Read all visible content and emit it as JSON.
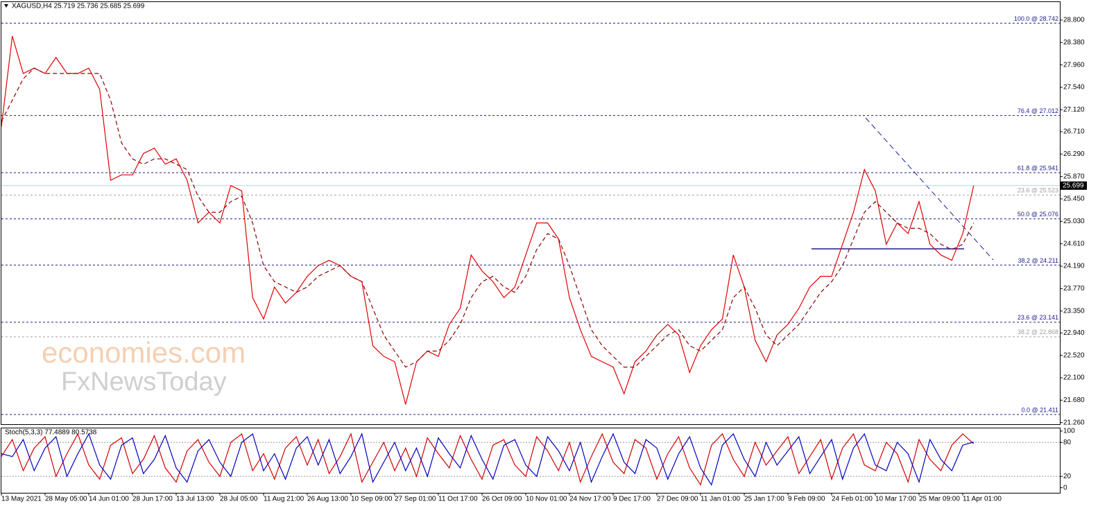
{
  "chart_data": [
    {
      "type": "line",
      "title": "XAGUSD,H4  25.719 25.736 25.685 25.699",
      "categories": [
        "13 May 2021",
        null,
        null,
        null,
        "28 May 05:00",
        null,
        null,
        null,
        "14 Jun 01:00",
        null,
        null,
        null,
        "28 Jun 17:00",
        null,
        null,
        null,
        "13 Jul 13:00",
        null,
        null,
        null,
        "28 Jul 05:00",
        null,
        null,
        null,
        "11 Aug 21:00",
        null,
        null,
        null,
        "26 Aug 13:00",
        null,
        null,
        null,
        "10 Sep 09:00",
        null,
        null,
        null,
        "27 Sep 01:00",
        null,
        null,
        null,
        "11 Oct 17:00",
        null,
        null,
        null,
        "26 Oct 09:00",
        null,
        null,
        null,
        "10 Nov 01:00",
        null,
        null,
        null,
        "24 Nov 17:00",
        null,
        null,
        null,
        "9 Dec 17:00",
        null,
        null,
        null,
        "27 Dec 09:00",
        null,
        null,
        null,
        "11 Jan 01:00",
        null,
        null,
        null,
        "25 Jan 17:00",
        null,
        null,
        null,
        "9 Feb 09:00",
        null,
        null,
        null,
        "24 Feb 01:00",
        null,
        null,
        null,
        "10 Mar 17:00",
        null,
        null,
        null,
        "25 Mar 09:00",
        null,
        null,
        null,
        "11 Apr 01:00",
        null
      ],
      "series": [
        {
          "color": "#e00000",
          "dash": false,
          "values": [
            26.8,
            28.5,
            27.8,
            27.9,
            27.8,
            28.1,
            27.8,
            27.8,
            27.9,
            27.5,
            25.8,
            25.9,
            25.9,
            26.3,
            26.4,
            26.1,
            26.2,
            25.8,
            25.0,
            25.2,
            25.0,
            25.7,
            25.6,
            23.6,
            23.2,
            23.8,
            23.5,
            23.7,
            24.0,
            24.2,
            24.3,
            24.2,
            24.0,
            23.9,
            22.7,
            22.5,
            22.4,
            21.6,
            22.4,
            22.6,
            22.5,
            23.1,
            23.4,
            24.4,
            24.1,
            23.9,
            23.6,
            23.8,
            24.4,
            25.0,
            25.0,
            24.7,
            23.6,
            23.0,
            22.5,
            22.4,
            22.3,
            21.8,
            22.4,
            22.6,
            22.9,
            23.1,
            22.9,
            22.2,
            22.7,
            23.0,
            23.2,
            24.4,
            23.8,
            22.8,
            22.4,
            22.9,
            23.1,
            23.4,
            23.8,
            24.0,
            24.0,
            24.6,
            25.2,
            26.0,
            25.6,
            24.6,
            25.0,
            24.8,
            25.4,
            24.6,
            24.4,
            24.3,
            24.8,
            25.7
          ]
        },
        {
          "color": "#8b0000",
          "dash": true,
          "values": [
            26.9,
            27.3,
            27.7,
            27.9,
            27.8,
            27.8,
            27.8,
            27.8,
            27.8,
            27.8,
            27.3,
            26.5,
            26.2,
            26.1,
            26.2,
            26.2,
            26.1,
            26.0,
            25.5,
            25.2,
            25.2,
            25.4,
            25.5,
            25.0,
            24.2,
            23.9,
            23.8,
            23.7,
            23.8,
            24.0,
            24.1,
            24.2,
            24.0,
            23.9,
            23.4,
            22.9,
            22.6,
            22.3,
            22.4,
            22.6,
            22.6,
            22.8,
            23.1,
            23.6,
            23.9,
            24.0,
            23.8,
            23.7,
            24.0,
            24.5,
            24.8,
            24.7,
            24.2,
            23.6,
            23.0,
            22.7,
            22.5,
            22.3,
            22.3,
            22.5,
            22.7,
            22.9,
            23.0,
            22.7,
            22.6,
            22.8,
            23.0,
            23.6,
            23.8,
            23.4,
            22.9,
            22.7,
            22.9,
            23.1,
            23.4,
            23.7,
            23.9,
            24.2,
            24.7,
            25.2,
            25.4,
            25.2,
            25.0,
            24.9,
            24.9,
            24.8,
            24.6,
            24.5,
            24.6,
            25.0
          ]
        }
      ],
      "ylim": [
        21.23,
        29.15
      ],
      "yticks": [
        {
          "value": 28.8,
          "label": "28.800"
        },
        {
          "value": 28.38,
          "label": "28.380"
        },
        {
          "value": 27.96,
          "label": "27.960"
        },
        {
          "value": 27.54,
          "label": "27.540"
        },
        {
          "value": 27.12,
          "label": "27.120"
        },
        {
          "value": 26.71,
          "label": "26.710"
        },
        {
          "value": 26.29,
          "label": "26.290"
        },
        {
          "value": 25.87,
          "label": "25.870"
        },
        {
          "value": 25.45,
          "label": "25.450"
        },
        {
          "value": 25.03,
          "label": "25.030"
        },
        {
          "value": 24.61,
          "label": "24.610"
        },
        {
          "value": 24.19,
          "label": "24.190"
        },
        {
          "value": 23.77,
          "label": "23.770"
        },
        {
          "value": 23.35,
          "label": "23.350"
        },
        {
          "value": 22.94,
          "label": "22.940"
        },
        {
          "value": 22.52,
          "label": "22.520"
        },
        {
          "value": 22.1,
          "label": "22.100"
        },
        {
          "value": 21.68,
          "label": "21.680"
        },
        {
          "value": 21.26,
          "label": "21.260"
        }
      ],
      "levels": [
        {
          "text": "100.0 @ 28.742",
          "value": 28.742,
          "color": "#1c1c8c"
        },
        {
          "text": "76.4 @ 27.012",
          "value": 27.012,
          "color": "#1c1c8c"
        },
        {
          "text": "61.8 @ 25.941",
          "value": 25.941,
          "color": "#1c1c8c"
        },
        {
          "text": "23.6 @ 25.523",
          "value": 25.523,
          "color": "#a0a0a0"
        },
        {
          "text": "50.0 @ 25.076",
          "value": 25.076,
          "color": "#1c1c8c"
        },
        {
          "text": "38.2 @ 24.211",
          "value": 24.211,
          "color": "#1c1c8c"
        },
        {
          "text": "23.6 @ 23.141",
          "value": 23.141,
          "color": "#1c1c8c"
        },
        {
          "text": "38.2 @ 22.868",
          "value": 22.868,
          "color": "#a0a0a0"
        },
        {
          "text": "0.0 @ 21.411",
          "value": 21.411,
          "color": "#1c1c8c"
        }
      ],
      "last_price": {
        "value": 25.699,
        "label": "25.699"
      }
    },
    {
      "type": "line",
      "title": "Stoch(5,3,3) 77.4889 80.5738",
      "series": [
        {
          "color": "#d00000",
          "dash": false,
          "values": [
            55,
            85,
            30,
            70,
            90,
            20,
            60,
            95,
            40,
            15,
            75,
            88,
            25,
            50,
            92,
            35,
            10,
            65,
            85,
            45,
            20,
            80,
            95,
            30,
            60,
            15,
            70,
            90,
            40,
            85,
            25,
            55,
            95,
            10,
            45,
            80,
            30,
            70,
            20,
            88,
            60,
            35,
            92,
            50,
            15,
            75,
            85,
            40,
            20,
            90,
            65,
            30,
            80,
            10,
            55,
            95,
            45,
            25,
            85,
            70,
            15,
            60,
            90,
            35,
            5,
            75,
            95,
            50,
            20,
            80,
            40,
            65,
            90,
            25,
            55,
            85,
            15,
            70,
            95,
            40,
            30,
            80,
            60,
            10,
            85,
            50,
            30,
            75,
            95,
            77.5
          ]
        },
        {
          "color": "#0000c0",
          "dash": false,
          "values": [
            60,
            55,
            85,
            30,
            70,
            90,
            20,
            60,
            95,
            40,
            15,
            75,
            88,
            25,
            50,
            92,
            35,
            10,
            65,
            85,
            45,
            20,
            80,
            95,
            30,
            60,
            15,
            70,
            90,
            40,
            85,
            25,
            55,
            95,
            10,
            45,
            80,
            30,
            70,
            20,
            88,
            60,
            35,
            92,
            50,
            15,
            75,
            85,
            40,
            20,
            90,
            65,
            30,
            80,
            10,
            55,
            95,
            45,
            25,
            85,
            70,
            15,
            60,
            90,
            35,
            5,
            75,
            95,
            50,
            20,
            80,
            40,
            65,
            90,
            25,
            55,
            85,
            15,
            70,
            95,
            40,
            30,
            80,
            60,
            10,
            85,
            50,
            30,
            75,
            80.6
          ]
        }
      ],
      "ylim": [
        -9,
        106
      ],
      "yticks": [
        100,
        80,
        20,
        0
      ],
      "reference_lines": [
        80,
        20
      ]
    }
  ],
  "watermark": [
    "economies.com",
    "FxNewsToday"
  ]
}
